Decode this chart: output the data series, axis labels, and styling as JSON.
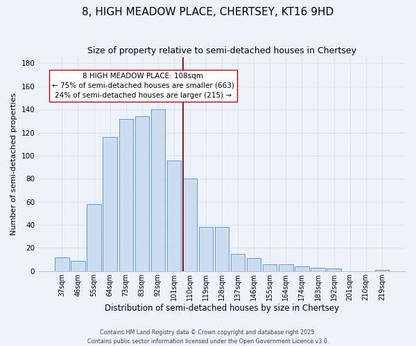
{
  "title": "8, HIGH MEADOW PLACE, CHERTSEY, KT16 9HD",
  "subtitle": "Size of property relative to semi-detached houses in Chertsey",
  "xlabel": "Distribution of semi-detached houses by size in Chertsey",
  "ylabel": "Number of semi-detached properties",
  "bar_labels": [
    "37sqm",
    "46sqm",
    "55sqm",
    "64sqm",
    "73sqm",
    "83sqm",
    "92sqm",
    "101sqm",
    "110sqm",
    "119sqm",
    "128sqm",
    "137sqm",
    "146sqm",
    "155sqm",
    "164sqm",
    "174sqm",
    "183sqm",
    "192sqm",
    "201sqm",
    "210sqm",
    "219sqm"
  ],
  "bar_values": [
    12,
    9,
    58,
    116,
    132,
    134,
    140,
    96,
    80,
    38,
    38,
    15,
    11,
    6,
    6,
    4,
    3,
    2,
    0,
    0,
    1
  ],
  "bar_color": "#ccddf2",
  "bar_edge_color": "#5b9bd5",
  "vline_color": "#8b0000",
  "annotation_title": "8 HIGH MEADOW PLACE: 108sqm",
  "annotation_line1": "← 75% of semi-detached houses are smaller (663)",
  "annotation_line2": "24% of semi-detached houses are larger (215) →",
  "annotation_box_facecolor": "#ffffff",
  "annotation_box_edgecolor": "#cc0000",
  "ylim": [
    0,
    185
  ],
  "yticks": [
    0,
    20,
    40,
    60,
    80,
    100,
    120,
    140,
    160,
    180
  ],
  "footer1": "Contains HM Land Registry data © Crown copyright and database right 2025.",
  "footer2": "Contains public sector information licensed under the Open Government Licence v3.0.",
  "background_color": "#eef2fb",
  "grid_color": "#dde4f0",
  "title_fontsize": 11,
  "subtitle_fontsize": 9,
  "tick_fontsize": 7,
  "ylabel_fontsize": 8,
  "xlabel_fontsize": 8.5,
  "annotation_fontsize": 7.5,
  "footer_fontsize": 5.8
}
